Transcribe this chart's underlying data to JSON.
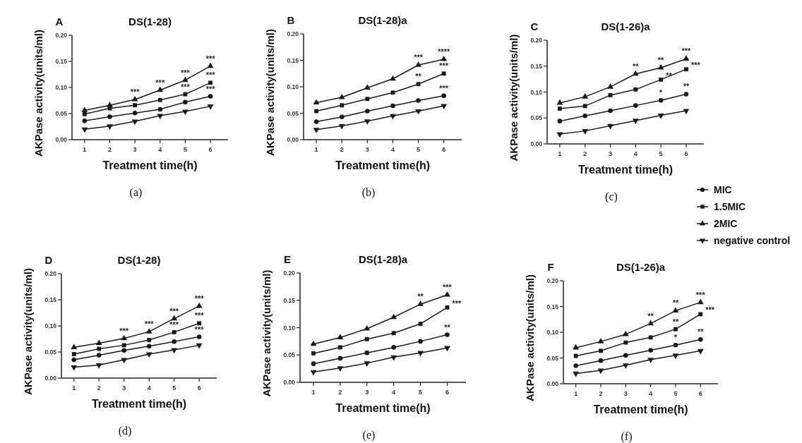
{
  "chart_data": [
    {
      "type": "line",
      "title": "DS(1-28)",
      "xlabel": "Treatment time(h)",
      "ylabel": "AKPase activity(units/ml)",
      "x": [
        1,
        2,
        3,
        4,
        5,
        6
      ],
      "xlim": [
        0.5,
        6.7
      ],
      "xticks": [
        1,
        2,
        3,
        4,
        5,
        6
      ],
      "ylim": [
        0,
        0.2
      ],
      "yticks": [
        {
          "value": 0,
          "label": "0.00"
        },
        {
          "value": 0.05,
          "label": "0.05"
        },
        {
          "value": 0.1,
          "label": "0.10"
        },
        {
          "value": 0.15,
          "label": "0.15"
        },
        {
          "value": 0.2,
          "label": "0.20"
        }
      ],
      "grid": false,
      "line_style": "solid",
      "series": [
        {
          "color": "#1a1a1a",
          "marker": "circle",
          "values": [
            0.036,
            0.044,
            0.051,
            0.058,
            0.072,
            0.083
          ]
        },
        {
          "color": "#1a1a1a",
          "marker": "square",
          "values": [
            0.049,
            0.06,
            0.066,
            0.076,
            0.087,
            0.109
          ]
        },
        {
          "color": "#1a1a1a",
          "marker": "triangle",
          "values": [
            0.056,
            0.066,
            0.077,
            0.095,
            0.114,
            0.141
          ]
        },
        {
          "color": "#1a1a1a",
          "marker": "triangle-down",
          "values": [
            0.02,
            0.026,
            0.035,
            0.046,
            0.054,
            0.064
          ]
        }
      ],
      "annotations": [
        "A",
        "(a)",
        {
          "text": "***",
          "x": 3,
          "y": 0.077
        },
        {
          "text": "***",
          "x": 4,
          "y": 0.095
        },
        {
          "text": "***",
          "x": 5,
          "y": 0.114
        },
        {
          "text": "***",
          "x": 5,
          "y": 0.087
        },
        {
          "text": "***",
          "x": 6,
          "y": 0.141
        },
        {
          "text": "***",
          "x": 6,
          "y": 0.109
        },
        {
          "text": "***",
          "x": 6,
          "y": 0.083
        }
      ]
    },
    {
      "type": "line",
      "title": "DS(1-28)a",
      "xlabel": "Treatment time(h)",
      "ylabel": "AKPase activity(units/ml)",
      "x": [
        1,
        2,
        3,
        4,
        5,
        6
      ],
      "xlim": [
        0.5,
        6.7
      ],
      "xticks": [
        1,
        2,
        3,
        4,
        5,
        6
      ],
      "ylim": [
        0,
        0.2
      ],
      "yticks": [
        {
          "value": 0,
          "label": "0.00"
        },
        {
          "value": 0.05,
          "label": "0.05"
        },
        {
          "value": 0.1,
          "label": "0.10"
        },
        {
          "value": 0.15,
          "label": "0.15"
        },
        {
          "value": 0.2,
          "label": "0.20"
        }
      ],
      "grid": false,
      "line_style": "solid",
      "series": [
        {
          "color": "#1a1a1a",
          "marker": "circle",
          "values": [
            0.034,
            0.043,
            0.054,
            0.064,
            0.074,
            0.083
          ]
        },
        {
          "color": "#1a1a1a",
          "marker": "square",
          "values": [
            0.054,
            0.065,
            0.077,
            0.089,
            0.105,
            0.125
          ]
        },
        {
          "color": "#1a1a1a",
          "marker": "triangle",
          "values": [
            0.07,
            0.08,
            0.098,
            0.115,
            0.141,
            0.152
          ]
        },
        {
          "color": "#1a1a1a",
          "marker": "triangle-down",
          "values": [
            0.019,
            0.026,
            0.035,
            0.045,
            0.054,
            0.064
          ]
        }
      ],
      "annotations": [
        "B",
        "(b)",
        {
          "text": "***",
          "x": 5,
          "y": 0.141
        },
        {
          "text": "****",
          "x": 6,
          "y": 0.152
        },
        {
          "text": "***",
          "x": 6,
          "y": 0.125
        },
        {
          "text": "**",
          "x": 5,
          "y": 0.105
        },
        {
          "text": "***",
          "x": 6,
          "y": 0.083
        }
      ]
    },
    {
      "type": "line",
      "title": "DS(1-26)a",
      "xlabel": "Treatment time(h)",
      "ylabel": "AKPase activity(units/ml)",
      "x": [
        1,
        2,
        3,
        4,
        5,
        6
      ],
      "xlim": [
        0.5,
        6.7
      ],
      "xticks": [
        1,
        2,
        3,
        4,
        5,
        6
      ],
      "ylim": [
        0,
        0.2
      ],
      "yticks": [
        {
          "value": 0,
          "label": "0.00"
        },
        {
          "value": 0.05,
          "label": "0.05"
        },
        {
          "value": 0.1,
          "label": "0.10"
        },
        {
          "value": 0.15,
          "label": "0.15"
        },
        {
          "value": 0.2,
          "label": "0.20"
        }
      ],
      "grid": false,
      "line_style": "solid",
      "legend": "bottom right",
      "series": [
        {
          "name": "MIC",
          "color": "#1a1a1a",
          "marker": "circle",
          "values": [
            0.044,
            0.054,
            0.064,
            0.074,
            0.084,
            0.096
          ]
        },
        {
          "name": "1.5MIC",
          "color": "#1a1a1a",
          "marker": "square",
          "values": [
            0.068,
            0.073,
            0.094,
            0.105,
            0.124,
            0.144
          ]
        },
        {
          "name": "2MIC",
          "color": "#1a1a1a",
          "marker": "triangle",
          "values": [
            0.079,
            0.091,
            0.11,
            0.135,
            0.147,
            0.164
          ]
        },
        {
          "name": "negative control",
          "color": "#1a1a1a",
          "marker": "triangle-down",
          "values": [
            0.019,
            0.025,
            0.035,
            0.045,
            0.055,
            0.064
          ]
        }
      ],
      "annotations": [
        "C",
        "(c)",
        {
          "text": "**",
          "x": 4,
          "y": 0.135
        },
        {
          "text": "**",
          "x": 5,
          "y": 0.147
        },
        {
          "text": "***",
          "x": 6,
          "y": 0.164
        },
        {
          "text": "**",
          "x": 5,
          "y": 0.124
        },
        {
          "text": "***",
          "x": 6,
          "y": 0.144
        },
        {
          "text": "*",
          "x": 5,
          "y": 0.084
        },
        {
          "text": "**",
          "x": 6,
          "y": 0.096
        }
      ]
    },
    {
      "type": "line",
      "title": "DS(1-28)",
      "xlabel": "Treatment time(h)",
      "ylabel": "AKPase activity(units/ml)",
      "x": [
        1,
        2,
        3,
        4,
        5,
        6
      ],
      "xlim": [
        0.5,
        6.7
      ],
      "xticks": [
        1,
        2,
        3,
        4,
        5,
        6
      ],
      "ylim": [
        0,
        0.2
      ],
      "yticks": [
        {
          "value": 0,
          "label": "0.00"
        },
        {
          "value": 0.05,
          "label": "0.05"
        },
        {
          "value": 0.1,
          "label": "0.10"
        },
        {
          "value": 0.15,
          "label": "0.15"
        },
        {
          "value": 0.2,
          "label": "0.20"
        }
      ],
      "grid": false,
      "line_style": "solid",
      "series": [
        {
          "color": "#1a1a1a",
          "marker": "circle",
          "values": [
            0.035,
            0.044,
            0.053,
            0.061,
            0.07,
            0.079
          ]
        },
        {
          "color": "#1a1a1a",
          "marker": "square",
          "values": [
            0.046,
            0.056,
            0.063,
            0.073,
            0.088,
            0.105
          ]
        },
        {
          "color": "#1a1a1a",
          "marker": "triangle",
          "values": [
            0.059,
            0.067,
            0.076,
            0.089,
            0.114,
            0.138
          ]
        },
        {
          "color": "#1a1a1a",
          "marker": "triangle-down",
          "values": [
            0.021,
            0.025,
            0.035,
            0.046,
            0.054,
            0.063
          ]
        }
      ],
      "annotations": [
        "D",
        "(d)",
        {
          "text": "***",
          "x": 3,
          "y": 0.076
        },
        {
          "text": "***",
          "x": 4,
          "y": 0.089
        },
        {
          "text": "***",
          "x": 5,
          "y": 0.114
        },
        {
          "text": "***",
          "x": 6,
          "y": 0.138
        },
        {
          "text": "***",
          "x": 5,
          "y": 0.088
        },
        {
          "text": "***",
          "x": 6,
          "y": 0.105
        },
        {
          "text": "***",
          "x": 6,
          "y": 0.079
        }
      ]
    },
    {
      "type": "line",
      "title": "DS(1-28)a",
      "xlabel": "Treatment time(h)",
      "ylabel": "AKPase activity(units/ml)",
      "x": [
        1,
        2,
        3,
        4,
        5,
        6
      ],
      "xlim": [
        0.5,
        6.7
      ],
      "xticks": [
        1,
        2,
        3,
        4,
        5,
        6
      ],
      "ylim": [
        0,
        0.2
      ],
      "yticks": [
        {
          "value": 0,
          "label": "0.00"
        },
        {
          "value": 0.05,
          "label": "0.05"
        },
        {
          "value": 0.1,
          "label": "0.10"
        },
        {
          "value": 0.15,
          "label": "0.15"
        },
        {
          "value": 0.2,
          "label": "0.20"
        }
      ],
      "grid": false,
      "line_style": "solid",
      "series": [
        {
          "color": "#1a1a1a",
          "marker": "circle",
          "values": [
            0.034,
            0.044,
            0.054,
            0.064,
            0.075,
            0.087
          ]
        },
        {
          "color": "#1a1a1a",
          "marker": "square",
          "values": [
            0.053,
            0.064,
            0.079,
            0.09,
            0.107,
            0.137
          ]
        },
        {
          "color": "#1a1a1a",
          "marker": "triangle",
          "values": [
            0.07,
            0.082,
            0.098,
            0.119,
            0.143,
            0.16
          ]
        },
        {
          "color": "#1a1a1a",
          "marker": "triangle-down",
          "values": [
            0.019,
            0.026,
            0.035,
            0.046,
            0.054,
            0.063
          ]
        }
      ],
      "annotations": [
        "E",
        "(e)",
        {
          "text": "**",
          "x": 5,
          "y": 0.143
        },
        {
          "text": "***",
          "x": 6,
          "y": 0.16
        },
        {
          "text": "***",
          "x": 6,
          "y": 0.137
        },
        {
          "text": "**",
          "x": 6,
          "y": 0.087
        }
      ]
    },
    {
      "type": "line",
      "title": "DS(1-26)a",
      "xlabel": "Treatment time(h)",
      "ylabel": "AKPase activity(units/ml)",
      "x": [
        1,
        2,
        3,
        4,
        5,
        6
      ],
      "xlim": [
        0.5,
        6.7
      ],
      "xticks": [
        1,
        2,
        3,
        4,
        5,
        6
      ],
      "ylim": [
        0,
        0.2
      ],
      "yticks": [
        {
          "value": 0,
          "label": "0.00"
        },
        {
          "value": 0.05,
          "label": "0.05"
        },
        {
          "value": 0.1,
          "label": "0.10"
        },
        {
          "value": 0.15,
          "label": "0.15"
        },
        {
          "value": 0.2,
          "label": "0.20"
        }
      ],
      "grid": false,
      "line_style": "solid",
      "series": [
        {
          "color": "#1a1a1a",
          "marker": "circle",
          "values": [
            0.035,
            0.045,
            0.055,
            0.065,
            0.075,
            0.086
          ]
        },
        {
          "color": "#1a1a1a",
          "marker": "square",
          "values": [
            0.054,
            0.064,
            0.08,
            0.09,
            0.106,
            0.135
          ]
        },
        {
          "color": "#1a1a1a",
          "marker": "triangle",
          "values": [
            0.07,
            0.082,
            0.096,
            0.117,
            0.142,
            0.158
          ]
        },
        {
          "color": "#1a1a1a",
          "marker": "triangle-down",
          "values": [
            0.02,
            0.026,
            0.036,
            0.047,
            0.055,
            0.064
          ]
        }
      ],
      "annotations": [
        "F",
        "(f)",
        {
          "text": "**",
          "x": 4,
          "y": 0.117
        },
        {
          "text": "**",
          "x": 5,
          "y": 0.142
        },
        {
          "text": "***",
          "x": 6,
          "y": 0.158
        },
        {
          "text": "**",
          "x": 5,
          "y": 0.106
        },
        {
          "text": "***",
          "x": 6,
          "y": 0.135
        },
        {
          "text": "*",
          "x": 5,
          "y": 0.075
        },
        {
          "text": "**",
          "x": 6,
          "y": 0.086
        }
      ]
    }
  ]
}
